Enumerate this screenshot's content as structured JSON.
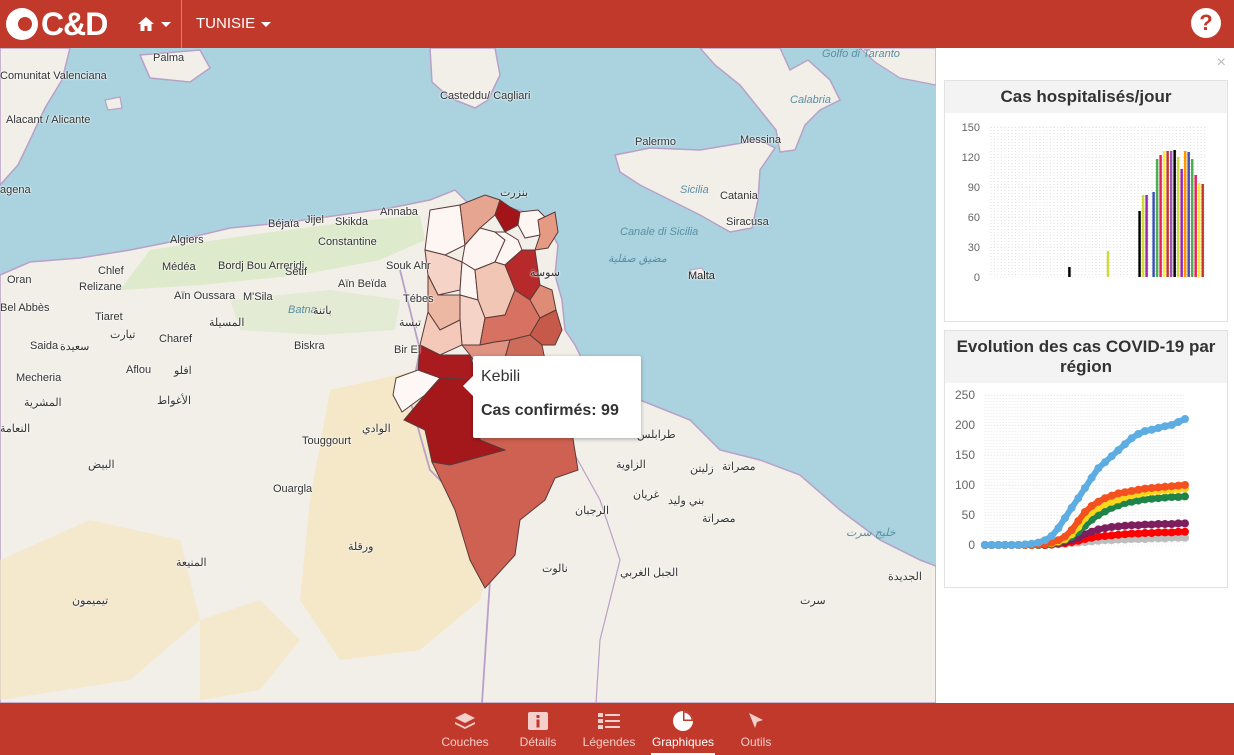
{
  "app": {
    "logo_text": "C&D",
    "country": "TUNISIE",
    "help_icon": "?"
  },
  "map": {
    "labels": {
      "palma": "Palma",
      "casteddu": "Casteddu/ Cagliari",
      "palermo": "Palermo",
      "messina": "Messina",
      "calabria": "Calabria",
      "golfo": "Golfo di Taranto",
      "sicilia": "Sicilia",
      "catania": "Catania",
      "siracusa": "Siracusa",
      "canale": "Canale di Sicilia",
      "canale_ar": "مضيق صقلية",
      "malta": "Malta",
      "alacant": "Alacant / Alicante",
      "comunitat": "Comunitat Valenciana",
      "agena": "agena",
      "oran": "Oran",
      "annaba": "Annaba",
      "algiers": "Algiers",
      "constantine": "Constantine",
      "bejaia": "Béjaïa",
      "jijel": "Jijel",
      "skikda": "Skikda",
      "medea": "Médéa",
      "chlef": "Chlef",
      "relizane": "Relizane",
      "bordjbou": "Bordj Bou Arreridj",
      "setif": "Sétif",
      "souk": "Souk Ahr",
      "ainbeida": "Aïn Beïda",
      "ainoussara": "Aïn Oussara",
      "msila": "M'Sila",
      "msila_ar": "المسيلة",
      "batna": "Batna",
      "batna_ar": "باتنة",
      "tebes": "Tébes",
      "tebes_ar": "تبسة",
      "tiaret": "Tiaret",
      "tiaret_ar": "تيارت",
      "belabbes": "Bel Abbès",
      "saida": "Saida",
      "saida_ar": "سعيدة",
      "charef": "Charef",
      "biskra": "Biskra",
      "birel": "Bir El",
      "mecheria": "Mecheria",
      "mecheria_ar": "المشرية",
      "aflou": "Aflou",
      "aflou_ar": "افلو",
      "touggourt": "Touggourt",
      "ouargla": "Ouargla",
      "laghouat_ar": "الأغواط",
      "eloued_ar": "الوادي",
      "bayadh_ar": "البيض",
      "ouargla_ar": "ورقلة",
      "naama_ar": "النعامة",
      "menia_ar": "المنيعة",
      "timimoun_ar": "تيميمون",
      "tripoli_ar": "طرابلس",
      "zawiya_ar": "الزاوية",
      "zliten_ar": "زليتن",
      "misrata_ar": "مصراتة",
      "gharyan_ar": "غريان",
      "baniwalid_ar": "بني وليد",
      "rujban_ar": "الرجبان",
      "misrata2_ar": "مصراتة",
      "jabal_ar": "الجبل الغربي",
      "nalut_ar": "نالوت",
      "sirte_ar": "سرت",
      "sirte_gulf_ar": "خليج سرت",
      "jadida_ar": "الجديدة",
      "bizerte_ar": "بنزرت",
      "sousse_ar": "سوسة"
    },
    "popup": {
      "title": "Kebili",
      "value": "Cas confirmés: 99"
    }
  },
  "panel": {
    "close_icon": "×"
  },
  "charts_text": {
    "hosp": {
      "title": "Cas hospitalisés/jour",
      "yticks": [
        "150",
        "120",
        "90",
        "60",
        "30",
        "0"
      ]
    },
    "evo": {
      "title": "Evolution des cas COVID-19 par région",
      "yticks": [
        "250",
        "200",
        "150",
        "100",
        "50",
        "0"
      ]
    }
  },
  "chart_data": [
    {
      "type": "bar",
      "title": "Cas hospitalisés/jour",
      "ylim": [
        0,
        150
      ],
      "values": [
        0,
        0,
        0,
        0,
        0,
        0,
        0,
        0,
        0,
        0,
        0,
        0,
        0,
        0,
        0,
        0,
        0,
        0,
        0,
        0,
        0,
        0,
        10,
        0,
        0,
        0,
        0,
        0,
        0,
        0,
        0,
        0,
        0,
        26,
        0,
        0,
        0,
        0,
        0,
        0,
        0,
        0,
        66,
        82,
        82,
        0,
        85,
        118,
        122,
        126,
        126,
        126,
        127,
        120,
        108,
        126,
        125,
        118,
        102,
        94,
        93
      ],
      "colors": [
        "#c0392b",
        "#9b59b6",
        "#000000",
        "#cddc39",
        "#9c27b0",
        "#ff9800",
        "#3f51b5",
        "#4caf50",
        "#e91e63",
        "#ffeb3b"
      ]
    },
    {
      "type": "line",
      "title": "Evolution des cas COVID-19 par région",
      "ylim": [
        0,
        250
      ],
      "series": [
        {
          "color": "#5dade2",
          "values": [
            0,
            0,
            0,
            0,
            0,
            0,
            1,
            2,
            4,
            8,
            15,
            28,
            45,
            62,
            78,
            95,
            112,
            128,
            138,
            148,
            158,
            168,
            178,
            185,
            190,
            192,
            195,
            198,
            200,
            205,
            210
          ]
        },
        {
          "color": "#f4511e",
          "values": [
            0,
            0,
            0,
            0,
            0,
            0,
            0,
            0,
            1,
            2,
            4,
            8,
            14,
            25,
            40,
            55,
            65,
            72,
            78,
            82,
            86,
            88,
            90,
            92,
            94,
            95,
            96,
            97,
            98,
            99,
            100
          ]
        },
        {
          "color": "#f9d71c",
          "values": [
            0,
            0,
            0,
            0,
            0,
            0,
            0,
            0,
            1,
            2,
            3,
            6,
            10,
            18,
            30,
            45,
            55,
            62,
            68,
            72,
            76,
            80,
            83,
            85,
            87,
            89,
            90,
            91,
            92,
            93,
            94
          ]
        },
        {
          "color": "#1e8449",
          "values": [
            0,
            0,
            0,
            0,
            0,
            0,
            0,
            0,
            0,
            1,
            2,
            4,
            8,
            14,
            22,
            32,
            42,
            50,
            56,
            62,
            66,
            70,
            72,
            74,
            76,
            77,
            78,
            79,
            80,
            80,
            81
          ]
        },
        {
          "color": "#7d1f5e",
          "values": [
            0,
            0,
            0,
            0,
            0,
            0,
            0,
            0,
            0,
            1,
            2,
            3,
            5,
            8,
            12,
            18,
            22,
            26,
            28,
            30,
            31,
            32,
            33,
            33,
            34,
            34,
            35,
            35,
            35,
            36,
            36
          ]
        },
        {
          "color": "#ff0000",
          "values": [
            0,
            0,
            0,
            0,
            0,
            0,
            0,
            0,
            0,
            0,
            1,
            2,
            3,
            5,
            7,
            10,
            12,
            14,
            15,
            16,
            17,
            18,
            19,
            19,
            20,
            20,
            21,
            21,
            21,
            22,
            22
          ]
        },
        {
          "color": "#bdbdbd",
          "values": [
            0,
            0,
            0,
            0,
            0,
            0,
            0,
            0,
            0,
            0,
            0,
            1,
            2,
            3,
            4,
            5,
            6,
            7,
            8,
            8,
            9,
            9,
            10,
            10,
            10,
            11,
            11,
            11,
            12,
            12,
            12
          ]
        }
      ]
    }
  ],
  "tabs": [
    {
      "label": "Couches",
      "icon": "layers-icon"
    },
    {
      "label": "Détails",
      "icon": "info-icon"
    },
    {
      "label": "Légendes",
      "icon": "list-icon"
    },
    {
      "label": "Graphiques",
      "icon": "pie-chart-icon",
      "active": true
    },
    {
      "label": "Outils",
      "icon": "pointer-icon"
    }
  ]
}
